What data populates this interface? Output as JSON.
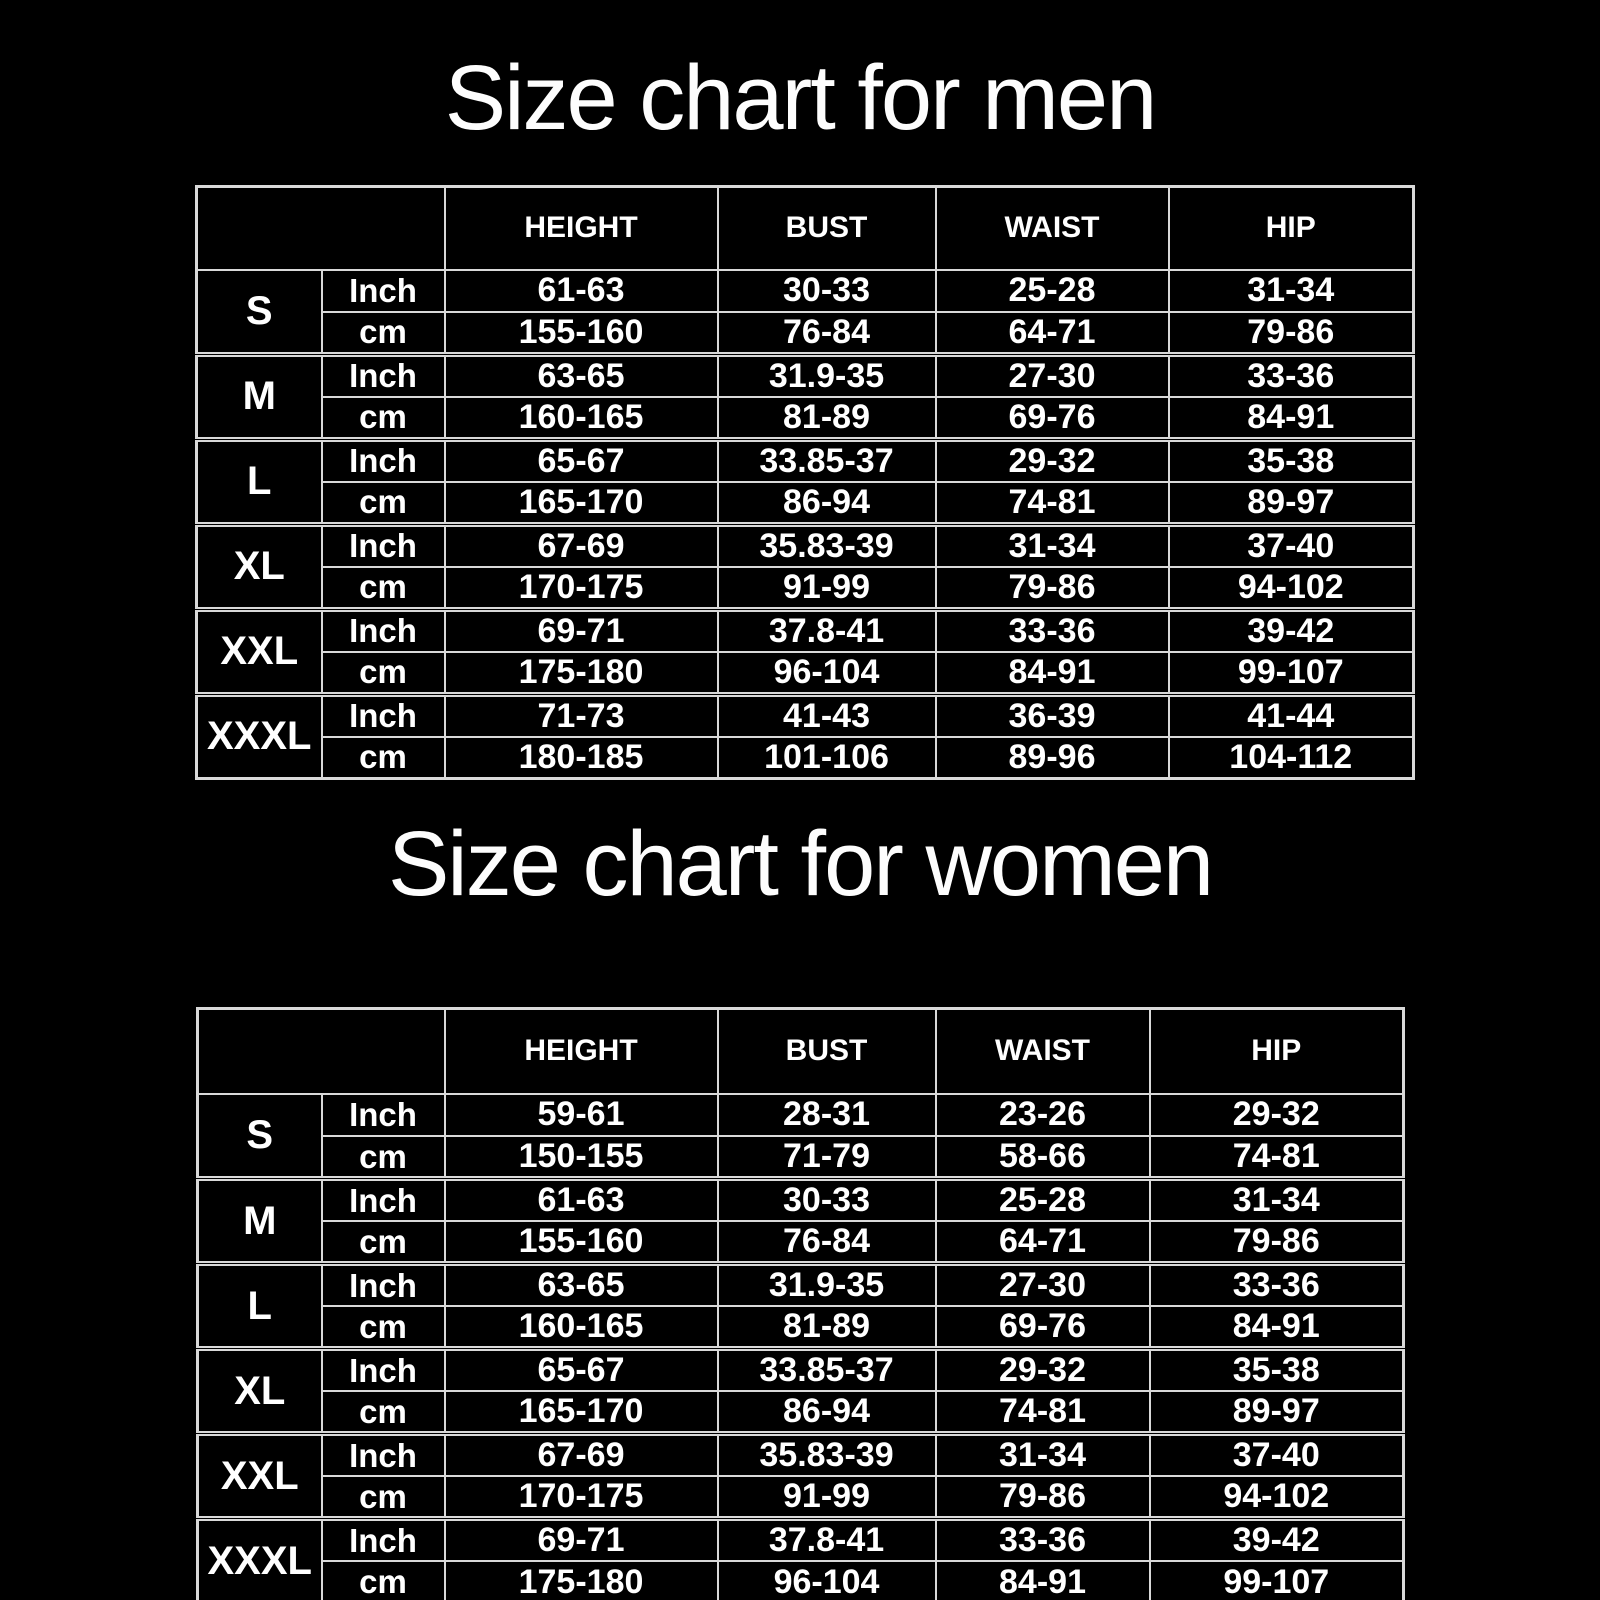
{
  "colors": {
    "background": "#000000",
    "text": "#ffffff",
    "grid_lines": "#d9d9d9"
  },
  "chart_data": [
    {
      "type": "table",
      "title": "Size chart for men",
      "columns": [
        "HEIGHT",
        "BUST",
        "WAIST",
        "HIP"
      ],
      "unit_labels": [
        "Inch",
        "cm"
      ],
      "rows": [
        {
          "size": "S",
          "inch": [
            "61-63",
            "30-33",
            "25-28",
            "31-34"
          ],
          "cm": [
            "155-160",
            "76-84",
            "64-71",
            "79-86"
          ]
        },
        {
          "size": "M",
          "inch": [
            "63-65",
            "31.9-35",
            "27-30",
            "33-36"
          ],
          "cm": [
            "160-165",
            "81-89",
            "69-76",
            "84-91"
          ]
        },
        {
          "size": "L",
          "inch": [
            "65-67",
            "33.85-37",
            "29-32",
            "35-38"
          ],
          "cm": [
            "165-170",
            "86-94",
            "74-81",
            "89-97"
          ]
        },
        {
          "size": "XL",
          "inch": [
            "67-69",
            "35.83-39",
            "31-34",
            "37-40"
          ],
          "cm": [
            "170-175",
            "91-99",
            "79-86",
            "94-102"
          ]
        },
        {
          "size": "XXL",
          "inch": [
            "69-71",
            "37.8-41",
            "33-36",
            "39-42"
          ],
          "cm": [
            "175-180",
            "96-104",
            "84-91",
            "99-107"
          ]
        },
        {
          "size": "XXXL",
          "inch": [
            "71-73",
            "41-43",
            "36-39",
            "41-44"
          ],
          "cm": [
            "180-185",
            "101-106",
            "89-96",
            "104-112"
          ]
        }
      ]
    },
    {
      "type": "table",
      "title": "Size chart for women",
      "columns": [
        "HEIGHT",
        "BUST",
        "WAIST",
        "HIP"
      ],
      "unit_labels": [
        "Inch",
        "cm"
      ],
      "rows": [
        {
          "size": "S",
          "inch": [
            "59-61",
            "28-31",
            "23-26",
            "29-32"
          ],
          "cm": [
            "150-155",
            "71-79",
            "58-66",
            "74-81"
          ]
        },
        {
          "size": "M",
          "inch": [
            "61-63",
            "30-33",
            "25-28",
            "31-34"
          ],
          "cm": [
            "155-160",
            "76-84",
            "64-71",
            "79-86"
          ]
        },
        {
          "size": "L",
          "inch": [
            "63-65",
            "31.9-35",
            "27-30",
            "33-36"
          ],
          "cm": [
            "160-165",
            "81-89",
            "69-76",
            "84-91"
          ]
        },
        {
          "size": "XL",
          "inch": [
            "65-67",
            "33.85-37",
            "29-32",
            "35-38"
          ],
          "cm": [
            "165-170",
            "86-94",
            "74-81",
            "89-97"
          ]
        },
        {
          "size": "XXL",
          "inch": [
            "67-69",
            "35.83-39",
            "31-34",
            "37-40"
          ],
          "cm": [
            "170-175",
            "91-99",
            "79-86",
            "94-102"
          ]
        },
        {
          "size": "XXXL",
          "inch": [
            "69-71",
            "37.8-41",
            "33-36",
            "39-42"
          ],
          "cm": [
            "175-180",
            "96-104",
            "84-91",
            "99-107"
          ]
        }
      ]
    }
  ]
}
